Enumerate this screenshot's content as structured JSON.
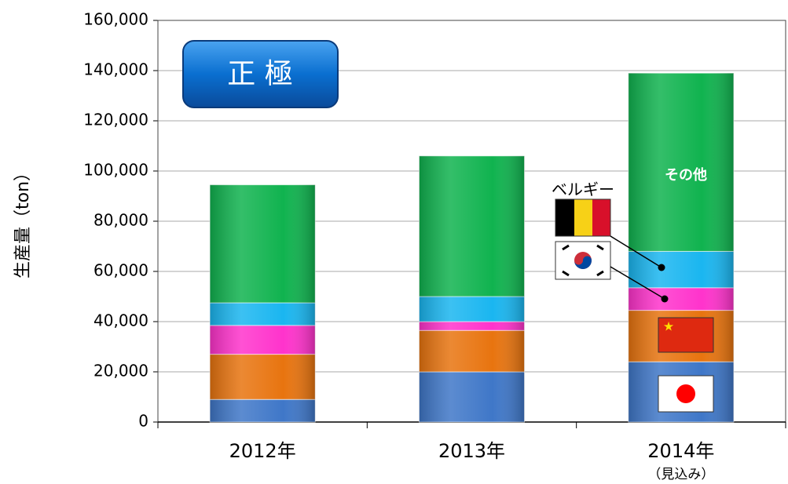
{
  "chart_data": {
    "type": "stacked_bar",
    "title": "正 極",
    "ylabel": "生産量（ton）",
    "categories": [
      "2012年",
      "2013年",
      "2014年"
    ],
    "category_notes": [
      null,
      null,
      "（見込み）"
    ],
    "series": [
      {
        "color": "#3f77c8",
        "values": [
          9000,
          20000,
          24000
        ]
      },
      {
        "color": "#e8740f",
        "values": [
          18000,
          16500,
          20500
        ]
      },
      {
        "color": "#ff33cc",
        "values": [
          11500,
          3500,
          9000
        ]
      },
      {
        "color": "#1ab6f0",
        "values": [
          9000,
          10000,
          14500
        ]
      },
      {
        "color": "#10b34f",
        "values": [
          47000,
          56000,
          71000
        ]
      }
    ],
    "annotations": [
      "その他",
      "ベルギー"
    ],
    "ylim": [
      0,
      160000
    ],
    "yticks": [
      0,
      {
        "value": 20000,
        "label": "20,000"
      },
      {
        "value": 40000,
        "label": "40,000"
      },
      {
        "value": 60000,
        "label": "60,000"
      },
      {
        "value": 80000,
        "label": "80,000"
      },
      {
        "value": 100000,
        "label": "100,000"
      },
      {
        "value": 120000,
        "label": "120,000"
      },
      {
        "value": 140000,
        "label": "140,000"
      },
      {
        "value": 160000,
        "label": "160,000"
      }
    ],
    "grid": true
  }
}
